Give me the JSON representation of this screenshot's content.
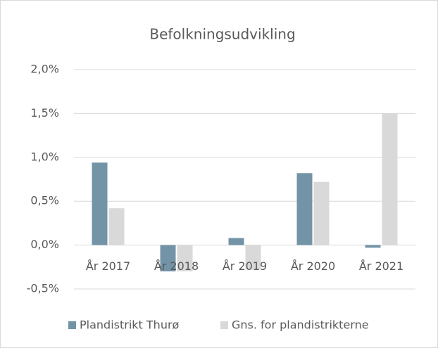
{
  "chart_data": {
    "type": "bar",
    "title": "Befolkningsudvikling",
    "categories": [
      "År 2017",
      "År 2018",
      "År 2019",
      "År 2020",
      "År 2021"
    ],
    "series": [
      {
        "name": "Plandistrikt Thurø",
        "color": "#7393a7",
        "values": [
          0.94,
          -0.3,
          0.08,
          0.82,
          -0.03
        ]
      },
      {
        "name": "Gns. for plandistrikterne",
        "color": "#d9d9d9",
        "values": [
          0.42,
          -0.3,
          -0.28,
          0.72,
          1.5
        ]
      }
    ],
    "ylim": [
      -0.5,
      2.0
    ],
    "yticks": [
      {
        "value": -0.5,
        "label": "-0,5%"
      },
      {
        "value": 0,
        "label": "0,0%"
      },
      {
        "value": 0.5,
        "label": "0,5%"
      },
      {
        "value": 1.0,
        "label": "1,0%"
      },
      {
        "value": 1.5,
        "label": "1,5%"
      },
      {
        "value": 2.0,
        "label": "2,0%"
      }
    ],
    "grid": true,
    "legend": "bottom"
  }
}
